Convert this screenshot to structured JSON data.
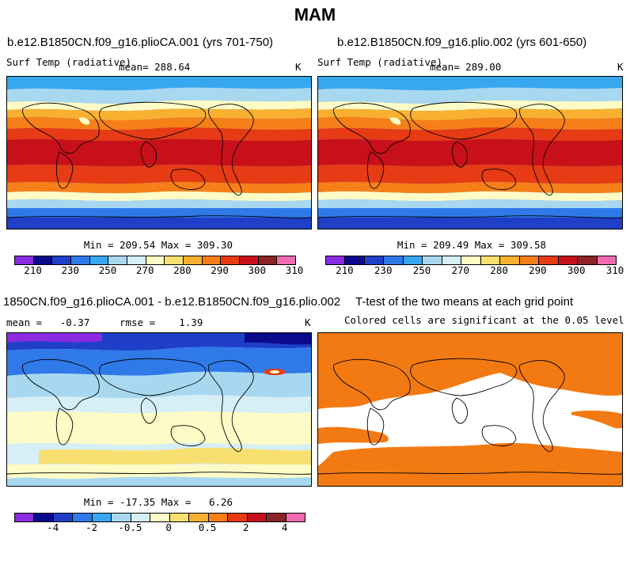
{
  "title": "MAM",
  "panels": {
    "top_left": {
      "title": "b.e12.B1850CN.f09_g16.plioCA.001 (yrs 701-750)",
      "var_label": "Surf Temp (radiative)",
      "mean_label": "mean=  288.64",
      "units": "K",
      "minmax": "Min = 209.54 Max = 309.30"
    },
    "top_right": {
      "title": "b.e12.B1850CN.f09_g16.plio.002 (yrs 601-650)",
      "var_label": "Surf Temp (radiative)",
      "mean_label": "mean=  289.00",
      "units": "K",
      "minmax": "Min = 209.49 Max = 309.58"
    },
    "bottom_left": {
      "title": "1850CN.f09_g16.plioCA.001 - b.e12.B1850CN.f09_g16.plio.002",
      "stats": "mean =   -0.37     rmse =    1.39",
      "units": "K",
      "minmax": "Min = -17.35 Max =   6.26"
    },
    "bottom_right": {
      "title": "T-test of the two means at each grid point",
      "subtitle": "Colored cells are significant at the 0.05 level"
    }
  },
  "colorbar_abs": {
    "colors": [
      "#8a2be2",
      "#0a0a8c",
      "#1f3fc8",
      "#2f7ae8",
      "#37a8f0",
      "#a8d8f0",
      "#d6eef6",
      "#fdfbc6",
      "#f8e070",
      "#f9b030",
      "#f77f18",
      "#e63b14",
      "#c8101a",
      "#8c2326",
      "#f06ab0"
    ],
    "ticks": [
      "210",
      "230",
      "250",
      "270",
      "280",
      "290",
      "300",
      "310"
    ]
  },
  "colorbar_diff": {
    "colors": [
      "#8a2be2",
      "#0a0a8c",
      "#1f3fc8",
      "#2f7ae8",
      "#37a8f0",
      "#a8d8f0",
      "#d6eef6",
      "#fdfbc6",
      "#f8e070",
      "#f9b030",
      "#f77f18",
      "#e63b14",
      "#c8101a",
      "#8c2326",
      "#f06ab0"
    ],
    "ticks": [
      "-4",
      "-2",
      "-0.5",
      "0",
      "0.5",
      "2",
      "4"
    ]
  },
  "significance_color": "#f37a12"
}
